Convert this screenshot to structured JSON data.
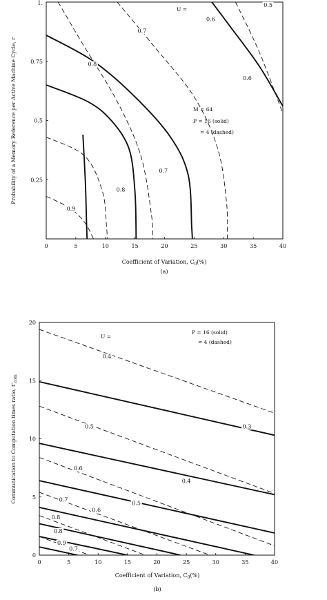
{
  "chart_data": [
    {
      "type": "line",
      "xlabel": "Coefficient of Variation, C",
      "xlabel_sub": "0",
      "xlabel_unit": "(%)",
      "ylabel": "Probability of a Memory Reference per Active Machine Cycle, r",
      "sublabel": "(a)",
      "xlim": [
        0,
        40
      ],
      "ylim": [
        0,
        1
      ],
      "xticks": [
        0,
        5,
        10,
        15,
        20,
        25,
        30,
        35,
        40
      ],
      "yticks": [
        0.25,
        0.5,
        0.75
      ],
      "ytick_labels": [
        "0.25",
        "0.5",
        "0.75"
      ],
      "ytop_label": "1.",
      "legend_header": "U =",
      "legend_lines": [
        "M = 64",
        "P = 16 (solid)",
        "= 4 (dashed)"
      ],
      "grid": false,
      "series": [
        {
          "style": "solid",
          "label": "0.5",
          "points": [
            [
              6.2,
              0.44
            ],
            [
              6.6,
              0.25
            ],
            [
              6.8,
              0.08
            ],
            [
              6.9,
              0
            ]
          ]
        },
        {
          "style": "solid",
          "label": "0.6",
          "points": [
            [
              0,
              0.65
            ],
            [
              7,
              0.58
            ],
            [
              11,
              0.5
            ],
            [
              14,
              0.38
            ],
            [
              15,
              0.2
            ],
            [
              15.2,
              0
            ]
          ]
        },
        {
          "style": "solid",
          "label": "0.7",
          "points": [
            [
              0,
              0.86
            ],
            [
              8,
              0.75
            ],
            [
              15,
              0.6
            ],
            [
              21,
              0.43
            ],
            [
              24,
              0.27
            ],
            [
              24.6,
              0.05
            ],
            [
              24.7,
              0
            ]
          ]
        },
        {
          "style": "solid",
          "label": "0.8",
          "points": [
            [
              28,
              1
            ],
            [
              31,
              0.9
            ],
            [
              36,
              0.73
            ],
            [
              40,
              0.56
            ]
          ]
        },
        {
          "style": "dashed",
          "label": "0.9",
          "points": [
            [
              0,
              0.18
            ],
            [
              4,
              0.13
            ],
            [
              6.5,
              0.07
            ],
            [
              8,
              0
            ]
          ]
        },
        {
          "style": "dashed",
          "label": "0.8",
          "points": [
            [
              0,
              0.43
            ],
            [
              6.5,
              0.35
            ],
            [
              9.5,
              0.2
            ],
            [
              10.2,
              0.05
            ],
            [
              10.3,
              0
            ]
          ]
        },
        {
          "style": "dashed",
          "label": "0.7",
          "points": [
            [
              2,
              1
            ],
            [
              6,
              0.83
            ],
            [
              12,
              0.58
            ],
            [
              16,
              0.35
            ],
            [
              17.8,
              0.1
            ],
            [
              18,
              0
            ]
          ]
        },
        {
          "style": "dashed",
          "label": "0.6",
          "points": [
            [
              12,
              1
            ],
            [
              18,
              0.82
            ],
            [
              25,
              0.6
            ],
            [
              29,
              0.38
            ],
            [
              30.5,
              0.15
            ],
            [
              30.6,
              0
            ]
          ]
        },
        {
          "style": "dashed",
          "label": "0.5",
          "points": [
            [
              32,
              1
            ],
            [
              36,
              0.79
            ],
            [
              40,
              0.53
            ]
          ]
        }
      ],
      "contour_labels": [
        {
          "text": "0.9",
          "x": 4.2,
          "y": 0.12
        },
        {
          "text": "0.8",
          "x": 12.6,
          "y": 0.2
        },
        {
          "text": "0.7",
          "x": 19.8,
          "y": 0.28
        },
        {
          "text": "0.8",
          "x": 7.8,
          "y": 0.73
        },
        {
          "text": "0.7",
          "x": 16.2,
          "y": 0.87
        },
        {
          "text": "0.6",
          "x": 27.8,
          "y": 0.92
        },
        {
          "text": "0.5",
          "x": 37.5,
          "y": 0.98
        },
        {
          "text": "0.6",
          "x": 34,
          "y": 0.67
        }
      ]
    },
    {
      "type": "line",
      "xlabel": "Coefficient of Variation, C",
      "xlabel_sub": "0",
      "xlabel_unit": "(%)",
      "ylabel": "Communication to Computation times ratio, t'",
      "ylabel_sub": "com",
      "sublabel": "(b)",
      "xlim": [
        0,
        40
      ],
      "ylim": [
        0,
        20
      ],
      "xticks": [
        0,
        5,
        10,
        15,
        20,
        25,
        30,
        35,
        40
      ],
      "yticks": [
        0,
        5,
        10,
        15,
        20
      ],
      "legend_header": "U =",
      "legend_lines": [
        "P = 16 (solid)",
        "= 4 (dashed)"
      ],
      "grid": false,
      "series": [
        {
          "style": "solid",
          "label": "0.3",
          "points": [
            [
              0,
              14.9
            ],
            [
              40,
              10.3
            ]
          ]
        },
        {
          "style": "solid",
          "label": "0.4",
          "points": [
            [
              0,
              9.6
            ],
            [
              40,
              5.2
            ]
          ]
        },
        {
          "style": "solid",
          "label": "0.5",
          "points": [
            [
              0,
              6.4
            ],
            [
              40,
              1.9
            ]
          ]
        },
        {
          "style": "solid",
          "label": "0.6",
          "points": [
            [
              0,
              4.1
            ],
            [
              36.5,
              0
            ]
          ]
        },
        {
          "style": "solid",
          "label": "0.7",
          "points": [
            [
              0,
              2.7
            ],
            [
              24,
              0
            ]
          ]
        },
        {
          "style": "solid",
          "label": "0.8",
          "points": [
            [
              0,
              1.6
            ],
            [
              15,
              0
            ]
          ]
        },
        {
          "style": "solid",
          "label": "0.9",
          "points": [
            [
              0,
              0.7
            ],
            [
              6.5,
              0
            ]
          ]
        },
        {
          "style": "dashed",
          "label": "0.4",
          "points": [
            [
              0,
              19.4
            ],
            [
              40,
              12.2
            ]
          ]
        },
        {
          "style": "dashed",
          "label": "0.5",
          "points": [
            [
              0,
              12.8
            ],
            [
              40,
              5.3
            ]
          ]
        },
        {
          "style": "dashed",
          "label": "0.6",
          "points": [
            [
              0,
              8.4
            ],
            [
              40,
              0.8
            ]
          ]
        },
        {
          "style": "dashed",
          "label": "0.7",
          "points": [
            [
              0,
              5.4
            ],
            [
              29,
              0
            ]
          ]
        },
        {
          "style": "dashed",
          "label": "0.8",
          "points": [
            [
              0,
              3.4
            ],
            [
              18,
              0
            ]
          ]
        },
        {
          "style": "dashed",
          "label": "0.9",
          "points": [
            [
              0,
              1.6
            ],
            [
              8.5,
              0
            ]
          ]
        }
      ],
      "contour_labels": [
        {
          "text": "0.4",
          "x": 11.5,
          "y": 16.9
        },
        {
          "text": "0.5",
          "x": 8.5,
          "y": 10.9
        },
        {
          "text": "0.6",
          "x": 6.6,
          "y": 7.3
        },
        {
          "text": "0.7",
          "x": 4.1,
          "y": 4.6
        },
        {
          "text": "0.8",
          "x": 2.8,
          "y": 3.1
        },
        {
          "text": "0.9",
          "x": 3.8,
          "y": 0.9
        },
        {
          "text": "0.8",
          "x": 3.2,
          "y": 1.9
        },
        {
          "text": "0.7",
          "x": 5.8,
          "y": 0.4
        },
        {
          "text": "0.6",
          "x": 9.7,
          "y": 3.7
        },
        {
          "text": "0.5",
          "x": 16.5,
          "y": 4.3
        },
        {
          "text": "0.4",
          "x": 25,
          "y": 6.2
        },
        {
          "text": "0.3",
          "x": 35.3,
          "y": 10.9
        }
      ]
    }
  ]
}
